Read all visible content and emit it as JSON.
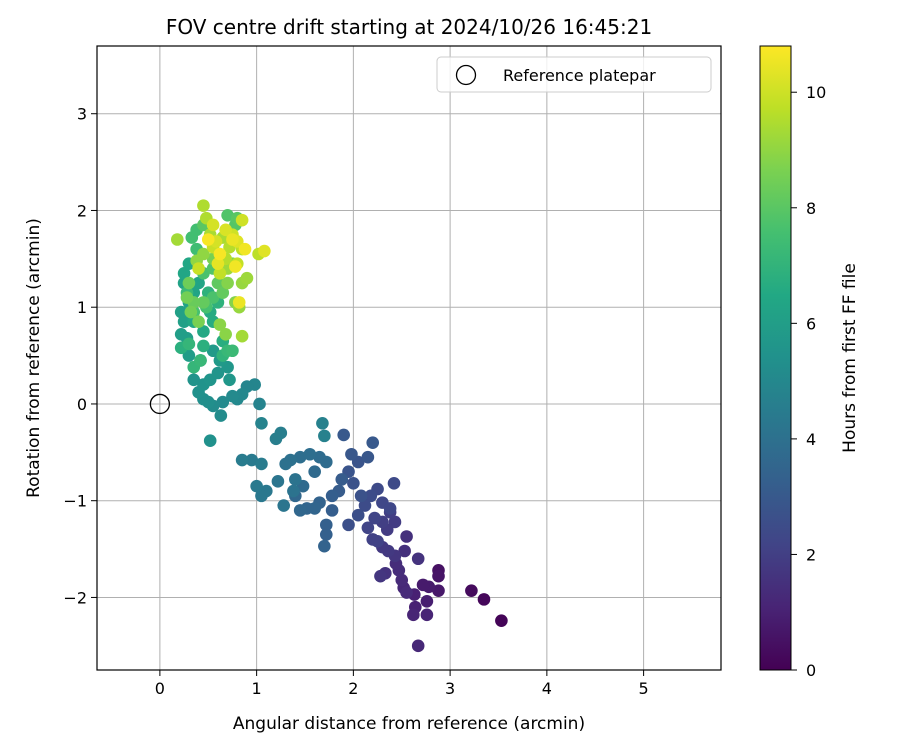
{
  "chart_data": {
    "type": "scatter",
    "title": "FOV centre drift starting at 2024/10/26 16:45:21",
    "xlabel": "Angular distance from reference (arcmin)",
    "ylabel": "Rotation from reference (arcmin)",
    "xlim": [
      -0.65,
      5.8
    ],
    "ylim": [
      -2.75,
      3.7
    ],
    "xticks": [
      0,
      1,
      2,
      3,
      4,
      5
    ],
    "yticks": [
      -2,
      -1,
      0,
      1,
      2,
      3
    ],
    "grid": true,
    "legend": {
      "placement": "top-right",
      "entries": [
        "Reference platepar"
      ]
    },
    "reference_point": {
      "x": 0,
      "y": 0
    },
    "colorbar": {
      "label": "Hours from first FF file",
      "range": [
        0,
        10.8
      ],
      "ticks": [
        0,
        2,
        4,
        6,
        8,
        10
      ],
      "colormap": "viridis"
    },
    "series": [
      {
        "columns": [
          "x",
          "y",
          "hours"
        ],
        "points": [
          [
            3.53,
            -2.24,
            0.1
          ],
          [
            3.35,
            -2.02,
            0.2
          ],
          [
            3.22,
            -1.93,
            0.3
          ],
          [
            2.88,
            -1.72,
            0.5
          ],
          [
            2.88,
            -1.78,
            0.6
          ],
          [
            2.88,
            -1.93,
            0.7
          ],
          [
            2.78,
            -1.89,
            0.8
          ],
          [
            2.72,
            -1.87,
            0.8
          ],
          [
            2.76,
            -2.04,
            0.9
          ],
          [
            2.63,
            -1.97,
            1.0
          ],
          [
            2.64,
            -2.1,
            1.0
          ],
          [
            2.62,
            -2.18,
            1.1
          ],
          [
            2.76,
            -2.18,
            1.1
          ],
          [
            2.67,
            -2.5,
            1.2
          ],
          [
            2.52,
            -1.9,
            1.2
          ],
          [
            2.55,
            -1.95,
            1.3
          ],
          [
            2.5,
            -1.82,
            1.3
          ],
          [
            2.47,
            -1.72,
            1.4
          ],
          [
            2.44,
            -1.65,
            1.4
          ],
          [
            2.53,
            -1.52,
            1.5
          ],
          [
            2.55,
            -1.37,
            1.5
          ],
          [
            2.67,
            -1.6,
            1.6
          ],
          [
            2.33,
            -1.75,
            1.6
          ],
          [
            2.28,
            -1.78,
            1.7
          ],
          [
            2.43,
            -1.57,
            1.7
          ],
          [
            2.36,
            -1.52,
            1.8
          ],
          [
            2.3,
            -1.48,
            1.8
          ],
          [
            2.35,
            -1.3,
            1.9
          ],
          [
            2.43,
            -1.22,
            1.9
          ],
          [
            2.38,
            -1.12,
            2.0
          ],
          [
            2.3,
            -1.22,
            2.0
          ],
          [
            2.25,
            -1.42,
            2.1
          ],
          [
            2.2,
            -1.4,
            2.1
          ],
          [
            2.15,
            -1.28,
            2.2
          ],
          [
            2.22,
            -1.18,
            2.2
          ],
          [
            2.3,
            -1.02,
            2.3
          ],
          [
            2.38,
            -1.08,
            2.3
          ],
          [
            2.42,
            -0.82,
            2.4
          ],
          [
            2.25,
            -0.88,
            2.4
          ],
          [
            2.18,
            -0.95,
            2.5
          ],
          [
            2.12,
            -1.05,
            2.5
          ],
          [
            2.05,
            -1.15,
            2.6
          ],
          [
            1.95,
            -1.25,
            2.6
          ],
          [
            2.08,
            -0.95,
            2.7
          ],
          [
            2.0,
            -0.82,
            2.7
          ],
          [
            1.95,
            -0.7,
            2.8
          ],
          [
            2.05,
            -0.6,
            2.8
          ],
          [
            2.15,
            -0.55,
            2.9
          ],
          [
            1.98,
            -0.52,
            2.9
          ],
          [
            2.2,
            -0.4,
            3.0
          ],
          [
            1.9,
            -0.32,
            3.0
          ],
          [
            1.88,
            -0.78,
            3.1
          ],
          [
            1.85,
            -0.9,
            3.1
          ],
          [
            1.78,
            -0.95,
            3.2
          ],
          [
            1.78,
            -1.1,
            3.2
          ],
          [
            1.72,
            -1.25,
            3.3
          ],
          [
            1.72,
            -1.35,
            3.3
          ],
          [
            1.7,
            -1.47,
            3.4
          ],
          [
            1.65,
            -1.02,
            3.4
          ],
          [
            1.6,
            -1.08,
            3.5
          ],
          [
            1.52,
            -1.08,
            3.5
          ],
          [
            1.45,
            -1.1,
            3.6
          ],
          [
            1.4,
            -0.95,
            3.6
          ],
          [
            1.48,
            -0.85,
            3.7
          ],
          [
            1.6,
            -0.7,
            3.7
          ],
          [
            1.72,
            -0.6,
            3.8
          ],
          [
            1.65,
            -0.55,
            3.8
          ],
          [
            1.55,
            -0.52,
            3.9
          ],
          [
            1.45,
            -0.55,
            3.9
          ],
          [
            1.35,
            -0.58,
            4.0
          ],
          [
            1.3,
            -0.62,
            4.0
          ],
          [
            1.4,
            -0.78,
            4.1
          ],
          [
            1.38,
            -0.9,
            4.1
          ],
          [
            1.28,
            -1.05,
            4.2
          ],
          [
            1.22,
            -0.8,
            4.2
          ],
          [
            1.1,
            -0.9,
            4.3
          ],
          [
            1.05,
            -0.95,
            4.3
          ],
          [
            1.0,
            -0.85,
            4.4
          ],
          [
            0.95,
            -0.58,
            4.4
          ],
          [
            0.85,
            -0.58,
            4.5
          ],
          [
            1.05,
            -0.62,
            4.5
          ],
          [
            1.25,
            -0.3,
            4.6
          ],
          [
            1.2,
            -0.36,
            4.6
          ],
          [
            1.68,
            -0.2,
            4.7
          ],
          [
            1.7,
            -0.33,
            4.7
          ],
          [
            1.05,
            -0.2,
            4.8
          ],
          [
            1.03,
            0.0,
            4.8
          ],
          [
            0.98,
            0.2,
            4.9
          ],
          [
            0.9,
            0.18,
            4.9
          ],
          [
            0.85,
            0.1,
            5.0
          ],
          [
            0.8,
            0.05,
            5.0
          ],
          [
            0.75,
            0.08,
            5.1
          ],
          [
            0.65,
            0.02,
            5.1
          ],
          [
            0.63,
            -0.12,
            5.2
          ],
          [
            0.55,
            -0.02,
            5.2
          ],
          [
            0.5,
            0.02,
            5.3
          ],
          [
            0.45,
            0.05,
            5.3
          ],
          [
            0.52,
            -0.38,
            5.4
          ],
          [
            0.4,
            0.12,
            5.4
          ],
          [
            0.45,
            0.2,
            5.5
          ],
          [
            0.35,
            0.25,
            5.5
          ],
          [
            0.52,
            0.25,
            5.6
          ],
          [
            0.6,
            0.32,
            5.6
          ],
          [
            0.7,
            0.38,
            5.7
          ],
          [
            0.72,
            0.25,
            5.7
          ],
          [
            0.62,
            0.45,
            5.8
          ],
          [
            0.55,
            0.55,
            5.8
          ],
          [
            0.42,
            0.45,
            5.9
          ],
          [
            0.3,
            0.5,
            5.9
          ],
          [
            0.28,
            0.68,
            6.0
          ],
          [
            0.22,
            0.72,
            6.0
          ],
          [
            0.25,
            0.85,
            6.1
          ],
          [
            0.22,
            0.95,
            6.1
          ],
          [
            0.3,
            1.05,
            6.2
          ],
          [
            0.25,
            1.25,
            6.2
          ],
          [
            0.35,
            1.15,
            6.3
          ],
          [
            0.4,
            1.25,
            6.3
          ],
          [
            0.3,
            1.45,
            6.4
          ],
          [
            0.25,
            1.35,
            6.4
          ],
          [
            0.35,
            0.85,
            6.5
          ],
          [
            0.45,
            0.75,
            6.5
          ],
          [
            0.55,
            0.85,
            6.6
          ],
          [
            0.52,
            0.95,
            6.6
          ],
          [
            0.65,
            0.65,
            6.7
          ],
          [
            0.22,
            0.58,
            6.8
          ],
          [
            0.45,
            0.6,
            6.8
          ],
          [
            0.6,
            1.05,
            6.9
          ],
          [
            0.5,
            1.15,
            6.9
          ],
          [
            0.65,
            0.5,
            7.0
          ],
          [
            0.3,
            0.62,
            7.1
          ],
          [
            0.35,
            0.38,
            7.1
          ],
          [
            0.42,
            0.45,
            7.2
          ],
          [
            0.7,
            0.55,
            7.2
          ],
          [
            0.75,
            0.55,
            7.3
          ],
          [
            0.28,
            1.15,
            7.3
          ],
          [
            0.38,
            1.6,
            7.4
          ],
          [
            0.33,
            1.72,
            7.5
          ],
          [
            0.38,
            1.8,
            7.5
          ],
          [
            0.35,
            0.95,
            7.6
          ],
          [
            0.48,
            1.0,
            7.6
          ],
          [
            0.55,
            1.1,
            7.7
          ],
          [
            0.45,
            1.35,
            7.7
          ],
          [
            0.55,
            1.4,
            7.8
          ],
          [
            0.7,
            1.95,
            7.8
          ],
          [
            0.78,
            1.85,
            7.9
          ],
          [
            0.8,
            1.92,
            8.0
          ],
          [
            0.45,
            1.85,
            8.0
          ],
          [
            0.6,
            1.25,
            8.1
          ],
          [
            0.65,
            1.15,
            8.2
          ],
          [
            0.45,
            1.05,
            8.2
          ],
          [
            0.35,
            1.05,
            8.3
          ],
          [
            0.3,
            1.25,
            8.4
          ],
          [
            0.28,
            1.1,
            8.5
          ],
          [
            0.32,
            0.95,
            8.5
          ],
          [
            0.4,
            0.85,
            8.6
          ],
          [
            0.55,
            1.5,
            8.6
          ],
          [
            0.75,
            1.45,
            8.7
          ],
          [
            0.7,
            1.25,
            8.8
          ],
          [
            0.78,
            1.05,
            8.8
          ],
          [
            0.68,
            0.72,
            8.9
          ],
          [
            0.62,
            0.82,
            8.9
          ],
          [
            0.38,
            1.48,
            9.0
          ],
          [
            0.45,
            1.55,
            9.0
          ],
          [
            0.82,
            1.0,
            9.1
          ],
          [
            0.85,
            1.25,
            9.1
          ],
          [
            0.9,
            1.3,
            9.2
          ],
          [
            0.7,
            1.4,
            9.2
          ],
          [
            0.18,
            1.7,
            9.3
          ],
          [
            0.85,
            0.7,
            9.3
          ],
          [
            0.65,
            1.72,
            9.4
          ],
          [
            0.52,
            1.75,
            9.4
          ],
          [
            0.48,
            1.92,
            9.5
          ],
          [
            0.45,
            2.05,
            9.5
          ],
          [
            0.68,
            1.5,
            9.6
          ],
          [
            0.72,
            1.62,
            9.6
          ],
          [
            1.02,
            1.55,
            9.7
          ],
          [
            0.85,
            1.6,
            9.7
          ],
          [
            0.8,
            1.45,
            9.8
          ],
          [
            0.62,
            1.35,
            9.8
          ],
          [
            0.4,
            1.4,
            9.9
          ],
          [
            0.55,
            1.62,
            9.9
          ],
          [
            0.75,
            1.75,
            10.0
          ],
          [
            0.85,
            1.9,
            10.0
          ],
          [
            0.55,
            1.85,
            10.1
          ],
          [
            0.58,
            1.68,
            10.1
          ],
          [
            0.68,
            1.8,
            10.2
          ],
          [
            1.08,
            1.58,
            10.3
          ],
          [
            0.8,
            1.68,
            10.3
          ],
          [
            0.6,
            1.45,
            10.4
          ],
          [
            0.75,
            1.7,
            10.5
          ],
          [
            0.82,
            1.05,
            10.5
          ],
          [
            0.78,
            1.42,
            10.6
          ],
          [
            0.88,
            1.6,
            10.6
          ],
          [
            0.62,
            1.55,
            10.7
          ],
          [
            0.5,
            1.7,
            10.7
          ]
        ]
      }
    ]
  }
}
